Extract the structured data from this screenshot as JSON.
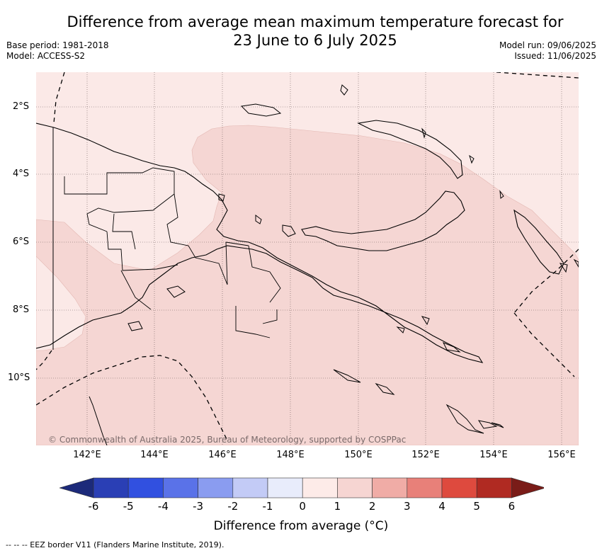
{
  "title_line1": "Difference from average mean maximum temperature forecast for",
  "title_line2": "23 June to 6 July 2025",
  "base_period": "Base period: 1981-2018",
  "model": "Model: ACCESS-S2",
  "model_run": "Model run: 09/06/2025",
  "issued": "Issued: 11/06/2025",
  "latitudes": [
    "2°S",
    "4°S",
    "6°S",
    "8°S",
    "10°S"
  ],
  "longitudes": [
    "142°E",
    "144°E",
    "146°E",
    "148°E",
    "150°E",
    "152°E",
    "154°E",
    "156°E"
  ],
  "credit": "© Commonwealth of Australia 2025, Bureau of Meteorology, supported by COSPPac",
  "legend": {
    "label": "Difference from average (°C)",
    "ticks": [
      "-6",
      "-5",
      "-4",
      "-3",
      "-2",
      "-1",
      "0",
      "1",
      "2",
      "3",
      "4",
      "5",
      "6"
    ],
    "colors": [
      "#1c2a7a",
      "#2a3fb5",
      "#3150e0",
      "#5a72e8",
      "#8a9cf0",
      "#c3cbf6",
      "#e8ecfb",
      "#fdebe8",
      "#f6d5d2",
      "#f0aca6",
      "#e88079",
      "#de4a3e",
      "#b02a22",
      "#7a1c18"
    ]
  },
  "map": {
    "sea_light": "#fbe9e7",
    "sea_mid": "#f5d6d3",
    "region_1_to_2": "#f5d6d3",
    "region_0_to_1": "#fbe9e7"
  },
  "footer": "-- -- -- EEZ border V11 (Flanders Marine Institute, 2019)."
}
